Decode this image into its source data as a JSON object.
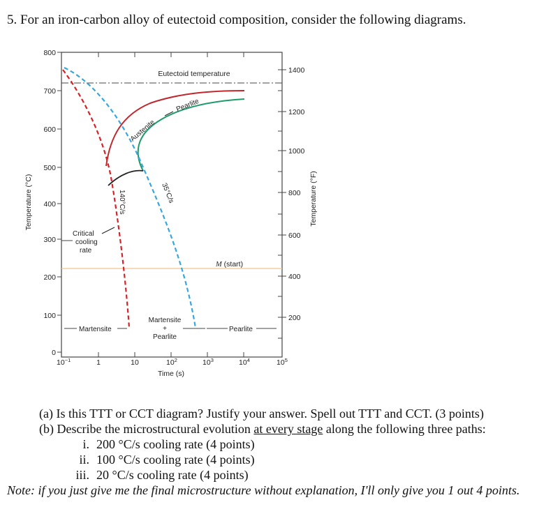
{
  "question": {
    "title": "5. For an iron-carbon alloy of eutectoid composition, consider the following diagrams."
  },
  "diagram": {
    "y_axis_left_title": "Temperature (°C)",
    "y_axis_right_title": "Temperature (°F)",
    "x_axis_title": "Time (s)",
    "left_ticks": [
      "800",
      "700",
      "600",
      "500",
      "400",
      "300",
      "200",
      "100",
      "0"
    ],
    "right_ticks": [
      "1400",
      "1200",
      "1000",
      "800",
      "600",
      "400",
      "200"
    ],
    "x_ticks": {
      "t0": "10",
      "t0_exp": "−1",
      "t1": "1",
      "t2": "10",
      "t3": "10",
      "t3_exp": "2",
      "t4": "10",
      "t4_exp": "3",
      "t5": "10",
      "t5_exp": "4",
      "t6": "10",
      "t6_exp": "5"
    },
    "labels": {
      "eutectoid": "Eutectoid temperature",
      "austenite": "Austenite",
      "pearlite_transform": "Pearlite",
      "rate_140": "140°C/s",
      "rate_35": "35°C/s",
      "critical_1": "Critical",
      "critical_2": "cooling",
      "critical_3": "rate",
      "m_start_m": "M",
      "m_start_rest": " (start)",
      "martensite": "Martensite",
      "mp_1": "Martensite",
      "mp_2": "+",
      "mp_3": "Pearlite",
      "pearlite_region": "Pearlite"
    },
    "colors": {
      "start_curve": "#c0272d",
      "finish_curve": "#1f9a6b",
      "cooling_140": "#d4242a",
      "cooling_35": "#3aa6de",
      "m_start_line": "#f2c48d",
      "axis": "#444444"
    }
  },
  "questions": {
    "a": "(a) Is this TTT or CCT diagram? Justify your answer. Spell out TTT and CCT. (3 points)",
    "b_pre": "(b) Describe the microstructural evolution ",
    "b_underline": "at every stage",
    "b_post": " along the following three paths:",
    "items": [
      {
        "num": "i.",
        "text": "200 °C/s cooling rate (4 points)"
      },
      {
        "num": "ii.",
        "text": "100 °C/s cooling rate (4 points)"
      },
      {
        "num": "iii.",
        "text": "20 °C/s cooling rate (4 points)"
      }
    ],
    "note": "Note: if you just give me the final microstructure without explanation, I'll only give you 1 out 4 points."
  }
}
